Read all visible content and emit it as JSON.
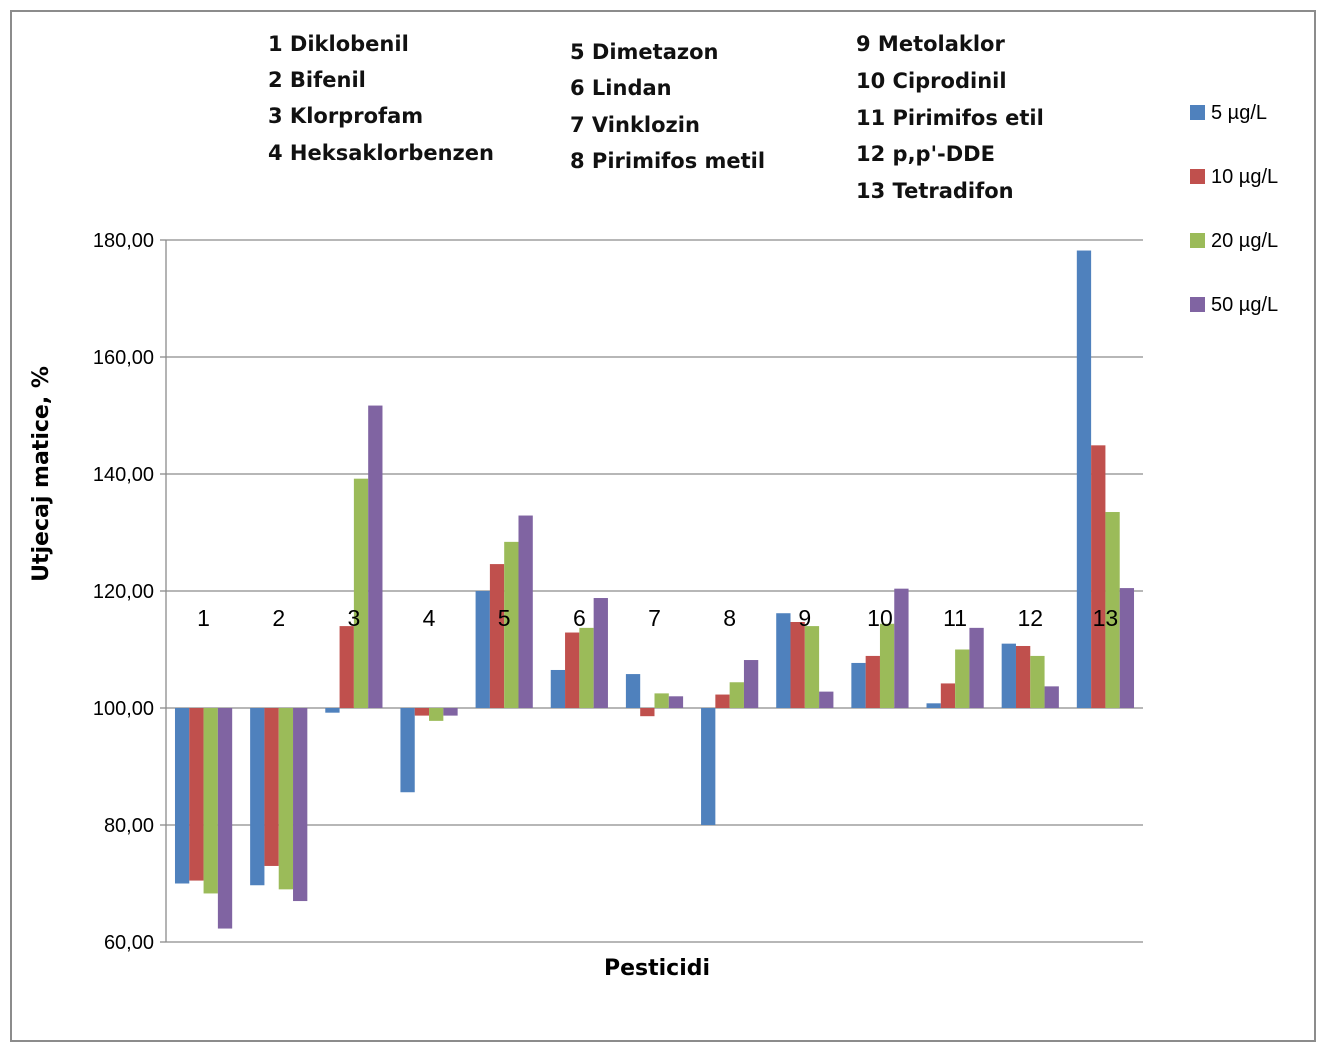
{
  "chart_data": {
    "type": "bar",
    "xlabel": "Pesticidi",
    "ylabel": "Utjecaj matice, %",
    "ylim": [
      60,
      180
    ],
    "y_ticks": [
      "60,00",
      "80,00",
      "100,00",
      "120,00",
      "140,00",
      "160,00",
      "180,00"
    ],
    "baseline": 100,
    "categories": [
      "1",
      "2",
      "3",
      "4",
      "5",
      "6",
      "7",
      "8",
      "9",
      "10",
      "11",
      "12",
      "13"
    ],
    "series": [
      {
        "name": "5 µg/L",
        "color": "#4f81bd",
        "values": [
          70.0,
          69.7,
          99.2,
          85.6,
          120.0,
          106.5,
          105.8,
          80.0,
          116.2,
          107.7,
          100.8,
          111.0,
          178.2
        ]
      },
      {
        "name": "10 µg/L",
        "color": "#c0504d",
        "values": [
          70.5,
          73.0,
          114.0,
          98.7,
          124.6,
          112.9,
          98.6,
          102.3,
          114.7,
          108.9,
          104.2,
          110.6,
          144.9
        ]
      },
      {
        "name": "20 µg/L",
        "color": "#9bbb59",
        "values": [
          68.3,
          69.0,
          139.2,
          97.8,
          128.4,
          113.7,
          102.5,
          104.4,
          114.0,
          114.4,
          110.0,
          108.9,
          133.5
        ]
      },
      {
        "name": "50 µg/L",
        "color": "#8064a2",
        "values": [
          62.3,
          67.0,
          151.7,
          98.7,
          132.9,
          118.8,
          102.0,
          108.2,
          102.8,
          120.4,
          113.7,
          103.7,
          120.5
        ]
      }
    ],
    "legend_position": "right",
    "grid": true,
    "annotations": [
      "1  Diklobenil",
      "2  Bifenil",
      "3 Klorprofam",
      "4 Heksaklorbenzen",
      "5  Dimetazon",
      "6  Lindan",
      "7  Vinklozin",
      "8  Pirimifos metil",
      "9  Metolaklor",
      "10  Ciprodinil",
      "11  Pirimifos etil",
      "12  p,p'-DDE",
      "13  Tetradifon"
    ]
  }
}
